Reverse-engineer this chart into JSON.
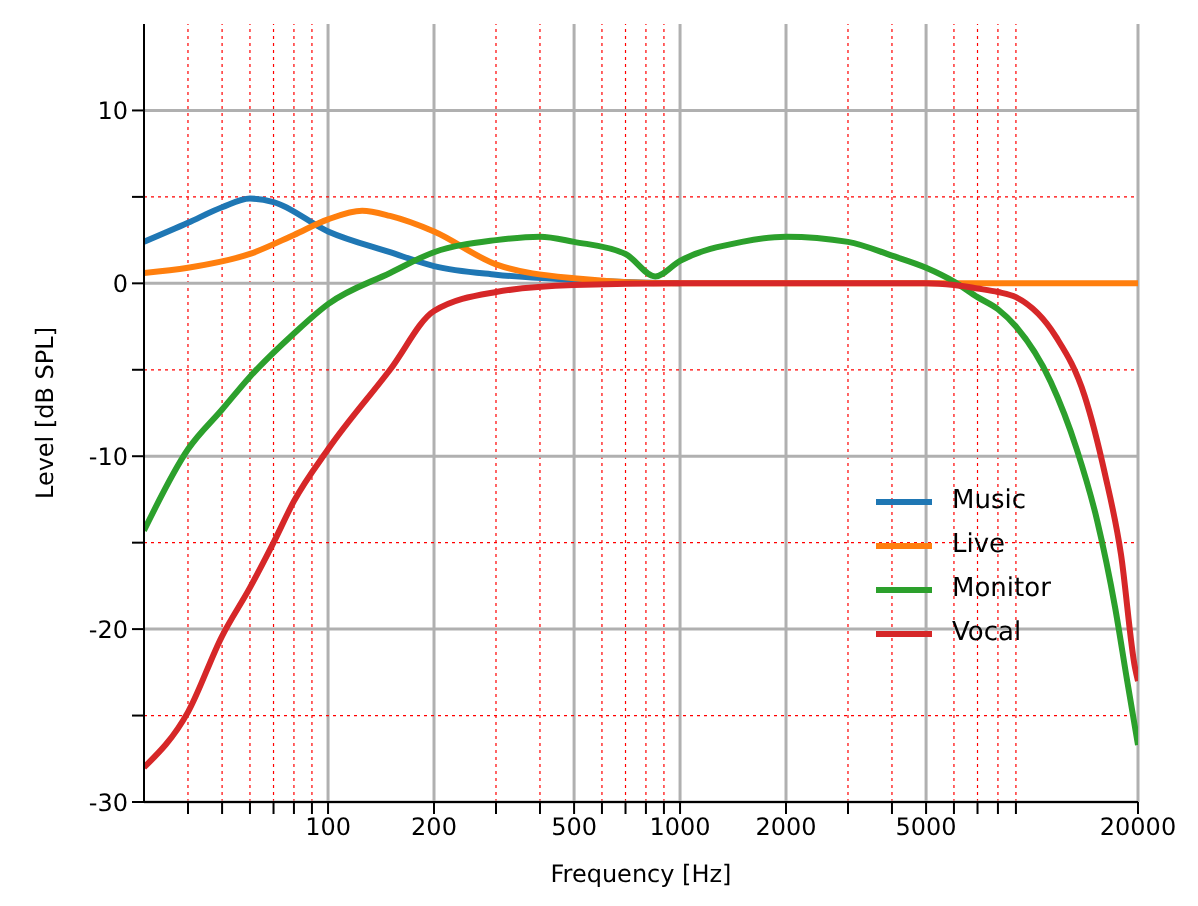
{
  "chart_data": {
    "type": "line",
    "xlabel": "Frequency [Hz]",
    "ylabel": "Level [dB SPL]",
    "log": "x",
    "grid": true,
    "legend": "lower right",
    "marker": "none",
    "line_style": "solid",
    "xlim": [
      30,
      20000
    ],
    "ylim": [
      -30,
      15
    ],
    "xticks": [
      {
        "value": 40,
        "label": null
      },
      {
        "value": 50,
        "label": null
      },
      {
        "value": 60,
        "label": null
      },
      {
        "value": 70,
        "label": null
      },
      {
        "value": 80,
        "label": null
      },
      {
        "value": 90,
        "label": null
      },
      100,
      200,
      {
        "value": 300,
        "label": null
      },
      {
        "value": 400,
        "label": null
      },
      500,
      {
        "value": 600,
        "label": null
      },
      {
        "value": 700,
        "label": null
      },
      {
        "value": 800,
        "label": null
      },
      {
        "value": 900,
        "label": null
      },
      1000,
      2000,
      {
        "value": 3000,
        "label": null
      },
      {
        "value": 4000,
        "label": null
      },
      5000,
      {
        "value": 6000,
        "label": null
      },
      {
        "value": 7000,
        "label": null
      },
      {
        "value": 8000,
        "label": null
      },
      {
        "value": 9000,
        "label": null
      },
      20000
    ],
    "yticks": [
      -30,
      {
        "value": -25,
        "label": null
      },
      -20,
      {
        "value": -15,
        "label": null
      },
      -10,
      {
        "value": -5,
        "label": null
      },
      0,
      {
        "value": 5,
        "label": null
      },
      10
    ],
    "series": [
      {
        "name": "Music",
        "color": "#1f77b4",
        "x": [
          30,
          40,
          50,
          60,
          70,
          100,
          150,
          200,
          300,
          500,
          1000
        ],
        "values": [
          2.4,
          3.5,
          4.4,
          4.9,
          4.7,
          3.0,
          1.8,
          1.0,
          0.5,
          0.2,
          0
        ]
      },
      {
        "name": "Live",
        "color": "#ff7f0e",
        "x": [
          30,
          40,
          60,
          80,
          100,
          125,
          150,
          200,
          300,
          500,
          1000,
          5000,
          20000
        ],
        "values": [
          0.6,
          0.9,
          1.7,
          2.8,
          3.7,
          4.2,
          3.9,
          3.0,
          1.1,
          0.3,
          0,
          0,
          0
        ]
      },
      {
        "name": "Monitor",
        "color": "#2ca02c",
        "x": [
          30,
          40,
          50,
          60,
          80,
          100,
          150,
          200,
          300,
          400,
          500,
          700,
          850,
          1000,
          1500,
          2000,
          3000,
          4000,
          5000,
          6000,
          7000,
          8000,
          9000,
          11300,
          13400,
          15300,
          17200,
          18600,
          20000
        ],
        "values": [
          -14.3,
          -9.6,
          -7.3,
          -5.4,
          -2.9,
          -1.2,
          0.6,
          1.8,
          2.5,
          2.7,
          2.4,
          1.7,
          0.4,
          1.3,
          2.4,
          2.7,
          2.4,
          1.6,
          0.9,
          0.1,
          -0.8,
          -1.5,
          -2.5,
          -5.7,
          -9.6,
          -13.7,
          -18.7,
          -22.9,
          -26.7
        ]
      },
      {
        "name": "Vocal",
        "color": "#d62728",
        "x": [
          30,
          40,
          50,
          60,
          70,
          80,
          100,
          150,
          200,
          300,
          500,
          1000,
          5000,
          6000,
          7000,
          8000,
          9000,
          11700,
          14100,
          16100,
          17900,
          19600,
          20000
        ],
        "values": [
          -28,
          -24.8,
          -20.4,
          -17.6,
          -15,
          -12.6,
          -9.6,
          -5,
          -1.6,
          -0.5,
          -0.1,
          0,
          0,
          -0.1,
          -0.3,
          -0.5,
          -0.8,
          -3.1,
          -6.5,
          -11,
          -15.7,
          -22.2,
          -23
        ]
      }
    ]
  }
}
